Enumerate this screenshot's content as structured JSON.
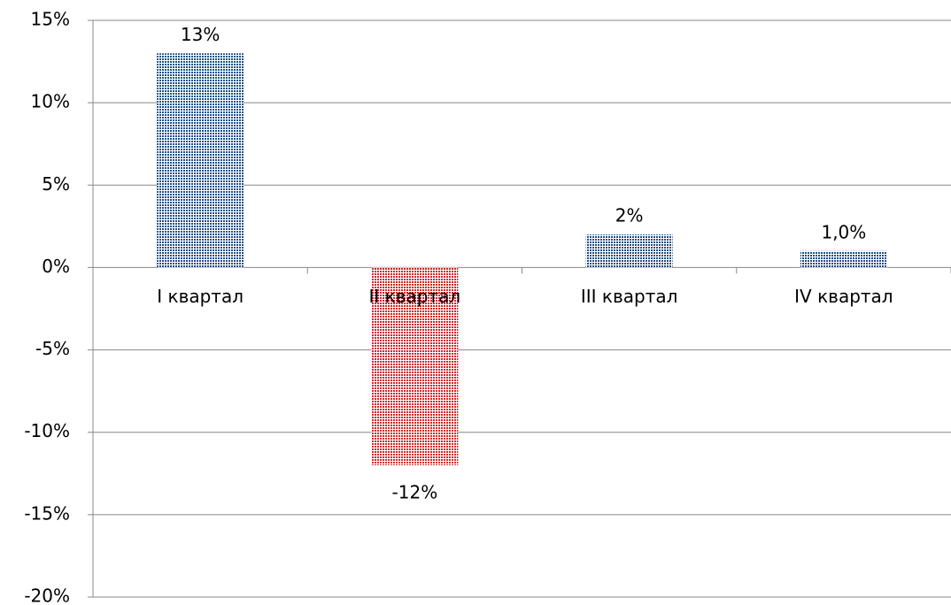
{
  "chart_data": {
    "type": "bar",
    "categories": [
      "I квартал",
      "II квартал",
      "III квартал",
      "IV квартал"
    ],
    "values": [
      13,
      -12,
      2,
      1.0
    ],
    "value_labels": [
      "13%",
      "-12%",
      "2%",
      "1,0%"
    ],
    "colors": [
      "#1f4e8c",
      "#e02020",
      "#1f4e8c",
      "#1f4e8c"
    ],
    "ylim": [
      -20,
      15
    ],
    "yticks": [
      {
        "value": -20,
        "label": "-20%"
      },
      {
        "value": -15,
        "label": "-15%"
      },
      {
        "value": -10,
        "label": "-10%"
      },
      {
        "value": -5,
        "label": "-5%"
      },
      {
        "value": 0,
        "label": "0%"
      },
      {
        "value": 5,
        "label": "5%"
      },
      {
        "value": 10,
        "label": "10%"
      },
      {
        "value": 15,
        "label": "15%"
      }
    ],
    "grid": true
  }
}
